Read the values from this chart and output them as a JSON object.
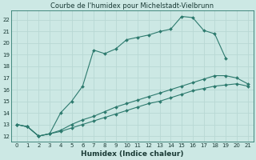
{
  "title": "Courbe de l'humidex pour Michelstadt-Vielbrunn",
  "xlabel": "Humidex (Indice chaleur)",
  "ylabel": "",
  "bg_color": "#cce8e4",
  "line_color": "#2d7a6e",
  "grid_color": "#b8d8d4",
  "xlim": [
    -0.5,
    21.5
  ],
  "ylim": [
    11.5,
    22.8
  ],
  "xticks": [
    0,
    1,
    2,
    3,
    4,
    5,
    6,
    7,
    8,
    9,
    10,
    11,
    12,
    13,
    14,
    15,
    16,
    17,
    18,
    19,
    20,
    21
  ],
  "yticks": [
    12,
    13,
    14,
    15,
    16,
    17,
    18,
    19,
    20,
    21,
    22
  ],
  "line1_x": [
    0,
    1,
    2,
    3,
    4,
    5,
    6,
    7,
    8,
    9,
    10,
    11,
    12,
    13,
    14,
    15,
    16,
    17,
    18,
    19
  ],
  "line1_y": [
    13.0,
    12.8,
    12.0,
    12.2,
    14.0,
    15.0,
    16.3,
    19.4,
    19.1,
    19.5,
    20.3,
    20.5,
    20.7,
    21.0,
    21.2,
    22.3,
    22.2,
    21.1,
    20.8,
    18.7
  ],
  "line2_x": [
    0,
    1,
    2,
    3,
    4,
    5,
    6,
    7,
    8,
    9,
    10,
    11,
    12,
    13,
    14,
    15,
    16,
    17,
    18,
    19,
    20,
    21
  ],
  "line2_y": [
    13.0,
    12.8,
    12.0,
    12.2,
    12.5,
    13.0,
    13.4,
    13.7,
    14.1,
    14.5,
    14.8,
    15.1,
    15.4,
    15.7,
    16.0,
    16.3,
    16.6,
    16.9,
    17.2,
    17.2,
    17.0,
    16.5
  ],
  "line3_x": [
    0,
    1,
    2,
    3,
    4,
    5,
    6,
    7,
    8,
    9,
    10,
    11,
    12,
    13,
    14,
    15,
    16,
    17,
    18,
    19,
    20,
    21
  ],
  "line3_y": [
    13.0,
    12.8,
    12.0,
    12.2,
    12.4,
    12.7,
    13.0,
    13.3,
    13.6,
    13.9,
    14.2,
    14.5,
    14.8,
    15.0,
    15.3,
    15.6,
    15.9,
    16.1,
    16.3,
    16.4,
    16.5,
    16.3
  ],
  "title_fontsize": 6.0,
  "xlabel_fontsize": 6.5,
  "tick_fontsize": 5.0
}
